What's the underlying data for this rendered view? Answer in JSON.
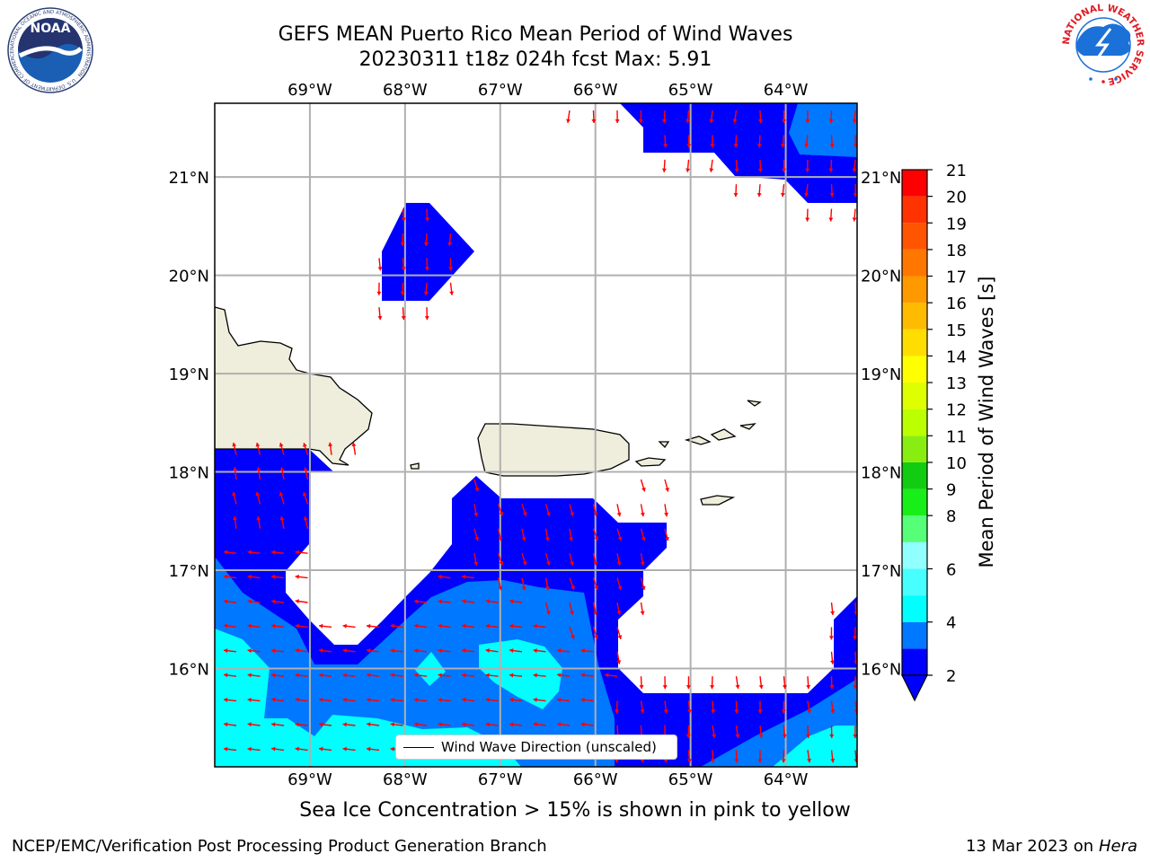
{
  "title": {
    "line1": "GEFS MEAN Puerto Rico Mean Period of Wind Waves",
    "line2": "20230311 t18z 024h fcst   Max: 5.91"
  },
  "map": {
    "lon_range": [
      -70,
      -63.25
    ],
    "lat_range": [
      15,
      21.75
    ],
    "lon_ticks": [
      -69,
      -68,
      -67,
      -66,
      -65,
      -64
    ],
    "lon_labels": [
      "69°W",
      "68°W",
      "67°W",
      "66°W",
      "65°W",
      "64°W"
    ],
    "lat_ticks": [
      16,
      17,
      18,
      19,
      20,
      21
    ],
    "lat_labels": [
      "16°N",
      "17°N",
      "18°N",
      "19°N",
      "20°N",
      "21°N"
    ],
    "grid": true,
    "land_color": "#efeedc",
    "arrow_color": "#ff0000"
  },
  "legend": {
    "label": "Wind Wave Direction (unscaled)",
    "placement": "bottom-center"
  },
  "colorbar": {
    "label": "Mean Period of Wind Waves [s]",
    "ticks": [
      2,
      3,
      4,
      5,
      6,
      7,
      8,
      9,
      10,
      11,
      12,
      13,
      14,
      15,
      16,
      17,
      18,
      19,
      20,
      21
    ],
    "tick_labels": [
      "2",
      "4",
      "6",
      "8",
      "9",
      "10",
      "11",
      "12",
      "13",
      "14",
      "15",
      "16",
      "17",
      "18",
      "19",
      "20",
      "21"
    ],
    "label_values": [
      2,
      4,
      6,
      8,
      9,
      10,
      11,
      12,
      13,
      14,
      15,
      16,
      17,
      18,
      19,
      20,
      21
    ],
    "colors": [
      "#0000ff",
      "#0078ff",
      "#00ffff",
      "#48ffff",
      "#92ffff",
      "#55ff77",
      "#18ee18",
      "#11cc11",
      "#88ee11",
      "#bbff00",
      "#ddff00",
      "#ffff00",
      "#ffdd00",
      "#ffbb00",
      "#ff9900",
      "#ff7700",
      "#ff5500",
      "#ff3300",
      "#ff0000"
    ],
    "extend": "min"
  },
  "footer": {
    "sea_ice": "Sea Ice Concentration > 15% is shown in pink to yellow",
    "credit": "NCEP/EMC/Verification Post Processing Product Generation Branch",
    "date": "13 Mar 2023 on",
    "machine": "Hera"
  },
  "logos": {
    "noaa_text": "NOAA",
    "noaa_ring_text": "NATIONAL OCEANIC AND ATMOSPHERIC ADMINISTRATION · U.S. DEPARTMENT OF COMMERCE",
    "nws_ring_text": "NATIONAL WEATHER SERVICE"
  }
}
